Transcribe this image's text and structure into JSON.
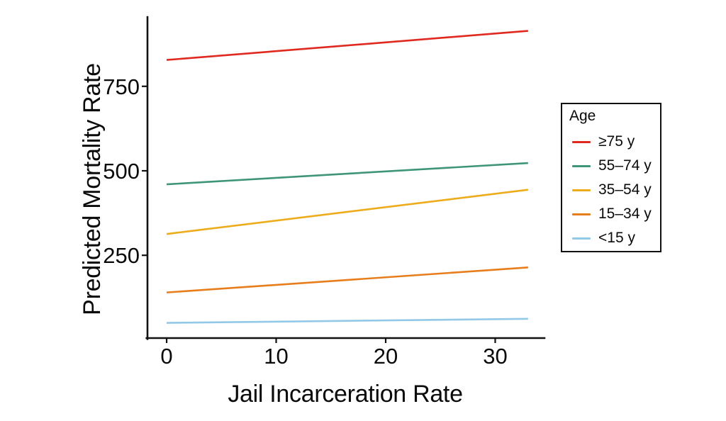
{
  "figure": {
    "x_axis_label": "Jail Incarceration Rate",
    "y_axis_label": "Predicted Mortality Rate",
    "legend_title": "Age"
  },
  "chart_data": {
    "type": "line",
    "title": "",
    "xlabel": "Jail Incarceration Rate",
    "ylabel": "Predicted Mortality Rate",
    "x_ticks": [
      0,
      10,
      20,
      30
    ],
    "y_ticks": [
      250,
      500,
      750
    ],
    "xlim": [
      -1.75,
      34.5
    ],
    "ylim": [
      5,
      953
    ],
    "grid": false,
    "legend_position": "right",
    "legend_title": "Age",
    "series": [
      {
        "name": "≥75 y",
        "color": "#e02a20",
        "x": [
          0,
          33
        ],
        "y": [
          828,
          914
        ]
      },
      {
        "name": "55–74 y",
        "color": "#3e9677",
        "x": [
          0,
          33
        ],
        "y": [
          460,
          523
        ]
      },
      {
        "name": "35–54 y",
        "color": "#edac1c",
        "x": [
          0,
          33
        ],
        "y": [
          313,
          444
        ]
      },
      {
        "name": "15–34 y",
        "color": "#e87d1c",
        "x": [
          0,
          33
        ],
        "y": [
          140,
          214
        ]
      },
      {
        "name": "<15 y",
        "color": "#92c9e8",
        "x": [
          0,
          33
        ],
        "y": [
          50,
          62
        ]
      }
    ]
  }
}
